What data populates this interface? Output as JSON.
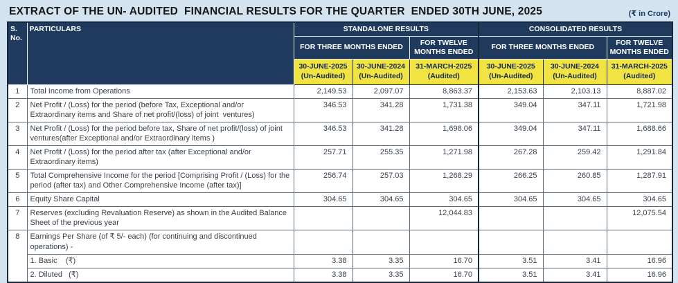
{
  "title": "EXTRACT OF THE UN- AUDITED  FINANCIAL RESULTS FOR THE QUARTER  ENDED 30TH JUNE, 2025",
  "currency_note": "(₹ in Crore)",
  "colors": {
    "page_background": "#d3e3f0",
    "header_navy": "#1f3a5c",
    "header_yellow": "#f0e342",
    "header_text": "#ffffff",
    "yellow_text": "#14294b",
    "body_text": "#3a3f45",
    "grid_border": "#5c6b7a",
    "outer_border": "#16283f"
  },
  "table": {
    "sno_header": "S.\nNo.",
    "particulars_header": "PARTICULARS",
    "standalone_label": "STANDALONE RESULTS",
    "consolidated_label": "CONSOLIDATED RESULTS",
    "period_three": "FOR THREE MONTHS ENDED",
    "period_twelve": "FOR TWELVE\nMONTHS ENDED",
    "col_dates": [
      "30-JUNE-2025\n(Un-Audited)",
      "30-JUNE-2024\n(Un-Audited)",
      "31-MARCH-2025\n(Audited)"
    ],
    "rows": [
      {
        "sno": "1",
        "sno_rowspan": 1,
        "particulars": "Total Income from Operations",
        "standalone": [
          "2,149.53",
          "2,097.07",
          "8,863.37"
        ],
        "consolidated": [
          "2,153.63",
          "2,103.13",
          "8,887.02"
        ]
      },
      {
        "sno": "2",
        "sno_rowspan": 1,
        "particulars": "Net Profit / (Loss) for the period (before Tax, Exceptional and/or Extraordinary items and Share of net profit/(loss) of joint  ventures)",
        "standalone": [
          "346.53",
          "341.28",
          "1,731.38"
        ],
        "consolidated": [
          "349.04",
          "347.11",
          "1,721.98"
        ]
      },
      {
        "sno": "3",
        "sno_rowspan": 1,
        "particulars": "Net Profit / (Loss) for the period before tax, Share of net profit/(loss) of joint ventures(after Exceptional and/or Extraordinary items )",
        "standalone": [
          "346.53",
          "341.28",
          "1,698.06"
        ],
        "consolidated": [
          "349.04",
          "347.11",
          "1,688.66"
        ]
      },
      {
        "sno": "4",
        "sno_rowspan": 1,
        "particulars": "Net Profit / (Loss) for the period after tax (after Exceptional and/or Extraordinary items)",
        "standalone": [
          "257.71",
          "255.35",
          "1,271.98"
        ],
        "consolidated": [
          "267.28",
          "259.42",
          "1,291.84"
        ]
      },
      {
        "sno": "5",
        "sno_rowspan": 1,
        "particulars": "Total Comprehensive Income for the period [Comprising Profit / (Loss) for the period (after tax) and Other Comprehensive Income (after tax)]",
        "standalone": [
          "256.74",
          "257.03",
          "1,268.29"
        ],
        "consolidated": [
          "266.25",
          "260.85",
          "1,287.91"
        ]
      },
      {
        "sno": "6",
        "sno_rowspan": 1,
        "particulars": "Equity Share Capital",
        "standalone": [
          "304.65",
          "304.65",
          "304.65"
        ],
        "consolidated": [
          "304.65",
          "304.65",
          "304.65"
        ]
      },
      {
        "sno": "7",
        "sno_rowspan": 1,
        "particulars": "Reserves (excluding Revaluation Reserve) as shown in the Audited Balance Sheet of the previous year",
        "standalone": [
          "",
          "",
          "12,044.83"
        ],
        "consolidated": [
          "",
          "",
          "12,075.54"
        ]
      },
      {
        "sno": "8",
        "sno_rowspan": 3,
        "particulars": "Earnings Per Share (of ₹ 5/- each) (for continuing and discontinued operations) -",
        "standalone": [
          "",
          "",
          ""
        ],
        "consolidated": [
          "",
          "",
          ""
        ]
      },
      {
        "sno": null,
        "particulars": "1. Basic    (₹)",
        "standalone": [
          "3.38",
          "3.35",
          "16.70"
        ],
        "consolidated": [
          "3.51",
          "3.41",
          "16.96"
        ]
      },
      {
        "sno": null,
        "particulars": "2. Diluted   (₹)",
        "standalone": [
          "3.38",
          "3.35",
          "16.70"
        ],
        "consolidated": [
          "3.51",
          "3.41",
          "16.96"
        ]
      }
    ]
  }
}
